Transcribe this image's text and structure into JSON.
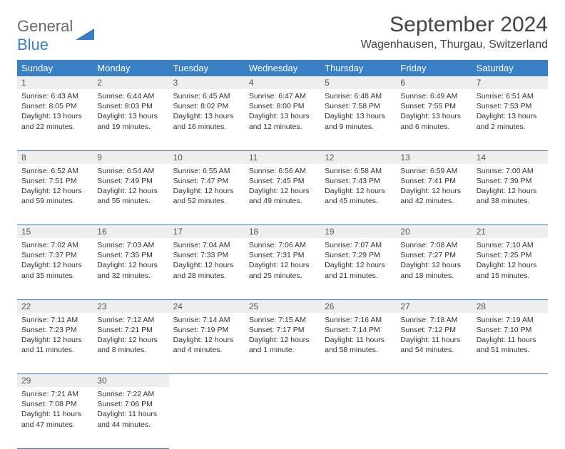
{
  "logo": {
    "word1": "General",
    "word2": "Blue"
  },
  "title": "September 2024",
  "location": "Wagenhausen, Thurgau, Switzerland",
  "colors": {
    "header_bg": "#3a7fc4",
    "header_text": "#ffffff",
    "daynum_bg": "#eeeeee",
    "daynum_text": "#555555",
    "body_text": "#333333",
    "border": "#3a7fc4",
    "logo_gray": "#6b6b6b",
    "logo_blue": "#3a7fc4"
  },
  "weekdays": [
    "Sunday",
    "Monday",
    "Tuesday",
    "Wednesday",
    "Thursday",
    "Friday",
    "Saturday"
  ],
  "weeks": [
    [
      {
        "day": "1",
        "sunrise": "Sunrise: 6:43 AM",
        "sunset": "Sunset: 8:05 PM",
        "daylight": "Daylight: 13 hours and 22 minutes."
      },
      {
        "day": "2",
        "sunrise": "Sunrise: 6:44 AM",
        "sunset": "Sunset: 8:03 PM",
        "daylight": "Daylight: 13 hours and 19 minutes."
      },
      {
        "day": "3",
        "sunrise": "Sunrise: 6:45 AM",
        "sunset": "Sunset: 8:02 PM",
        "daylight": "Daylight: 13 hours and 16 minutes."
      },
      {
        "day": "4",
        "sunrise": "Sunrise: 6:47 AM",
        "sunset": "Sunset: 8:00 PM",
        "daylight": "Daylight: 13 hours and 12 minutes."
      },
      {
        "day": "5",
        "sunrise": "Sunrise: 6:48 AM",
        "sunset": "Sunset: 7:58 PM",
        "daylight": "Daylight: 13 hours and 9 minutes."
      },
      {
        "day": "6",
        "sunrise": "Sunrise: 6:49 AM",
        "sunset": "Sunset: 7:55 PM",
        "daylight": "Daylight: 13 hours and 6 minutes."
      },
      {
        "day": "7",
        "sunrise": "Sunrise: 6:51 AM",
        "sunset": "Sunset: 7:53 PM",
        "daylight": "Daylight: 13 hours and 2 minutes."
      }
    ],
    [
      {
        "day": "8",
        "sunrise": "Sunrise: 6:52 AM",
        "sunset": "Sunset: 7:51 PM",
        "daylight": "Daylight: 12 hours and 59 minutes."
      },
      {
        "day": "9",
        "sunrise": "Sunrise: 6:54 AM",
        "sunset": "Sunset: 7:49 PM",
        "daylight": "Daylight: 12 hours and 55 minutes."
      },
      {
        "day": "10",
        "sunrise": "Sunrise: 6:55 AM",
        "sunset": "Sunset: 7:47 PM",
        "daylight": "Daylight: 12 hours and 52 minutes."
      },
      {
        "day": "11",
        "sunrise": "Sunrise: 6:56 AM",
        "sunset": "Sunset: 7:45 PM",
        "daylight": "Daylight: 12 hours and 49 minutes."
      },
      {
        "day": "12",
        "sunrise": "Sunrise: 6:58 AM",
        "sunset": "Sunset: 7:43 PM",
        "daylight": "Daylight: 12 hours and 45 minutes."
      },
      {
        "day": "13",
        "sunrise": "Sunrise: 6:59 AM",
        "sunset": "Sunset: 7:41 PM",
        "daylight": "Daylight: 12 hours and 42 minutes."
      },
      {
        "day": "14",
        "sunrise": "Sunrise: 7:00 AM",
        "sunset": "Sunset: 7:39 PM",
        "daylight": "Daylight: 12 hours and 38 minutes."
      }
    ],
    [
      {
        "day": "15",
        "sunrise": "Sunrise: 7:02 AM",
        "sunset": "Sunset: 7:37 PM",
        "daylight": "Daylight: 12 hours and 35 minutes."
      },
      {
        "day": "16",
        "sunrise": "Sunrise: 7:03 AM",
        "sunset": "Sunset: 7:35 PM",
        "daylight": "Daylight: 12 hours and 32 minutes."
      },
      {
        "day": "17",
        "sunrise": "Sunrise: 7:04 AM",
        "sunset": "Sunset: 7:33 PM",
        "daylight": "Daylight: 12 hours and 28 minutes."
      },
      {
        "day": "18",
        "sunrise": "Sunrise: 7:06 AM",
        "sunset": "Sunset: 7:31 PM",
        "daylight": "Daylight: 12 hours and 25 minutes."
      },
      {
        "day": "19",
        "sunrise": "Sunrise: 7:07 AM",
        "sunset": "Sunset: 7:29 PM",
        "daylight": "Daylight: 12 hours and 21 minutes."
      },
      {
        "day": "20",
        "sunrise": "Sunrise: 7:08 AM",
        "sunset": "Sunset: 7:27 PM",
        "daylight": "Daylight: 12 hours and 18 minutes."
      },
      {
        "day": "21",
        "sunrise": "Sunrise: 7:10 AM",
        "sunset": "Sunset: 7:25 PM",
        "daylight": "Daylight: 12 hours and 15 minutes."
      }
    ],
    [
      {
        "day": "22",
        "sunrise": "Sunrise: 7:11 AM",
        "sunset": "Sunset: 7:23 PM",
        "daylight": "Daylight: 12 hours and 11 minutes."
      },
      {
        "day": "23",
        "sunrise": "Sunrise: 7:12 AM",
        "sunset": "Sunset: 7:21 PM",
        "daylight": "Daylight: 12 hours and 8 minutes."
      },
      {
        "day": "24",
        "sunrise": "Sunrise: 7:14 AM",
        "sunset": "Sunset: 7:19 PM",
        "daylight": "Daylight: 12 hours and 4 minutes."
      },
      {
        "day": "25",
        "sunrise": "Sunrise: 7:15 AM",
        "sunset": "Sunset: 7:17 PM",
        "daylight": "Daylight: 12 hours and 1 minute."
      },
      {
        "day": "26",
        "sunrise": "Sunrise: 7:16 AM",
        "sunset": "Sunset: 7:14 PM",
        "daylight": "Daylight: 11 hours and 58 minutes."
      },
      {
        "day": "27",
        "sunrise": "Sunrise: 7:18 AM",
        "sunset": "Sunset: 7:12 PM",
        "daylight": "Daylight: 11 hours and 54 minutes."
      },
      {
        "day": "28",
        "sunrise": "Sunrise: 7:19 AM",
        "sunset": "Sunset: 7:10 PM",
        "daylight": "Daylight: 11 hours and 51 minutes."
      }
    ],
    [
      {
        "day": "29",
        "sunrise": "Sunrise: 7:21 AM",
        "sunset": "Sunset: 7:08 PM",
        "daylight": "Daylight: 11 hours and 47 minutes."
      },
      {
        "day": "30",
        "sunrise": "Sunrise: 7:22 AM",
        "sunset": "Sunset: 7:06 PM",
        "daylight": "Daylight: 11 hours and 44 minutes."
      },
      null,
      null,
      null,
      null,
      null
    ]
  ]
}
